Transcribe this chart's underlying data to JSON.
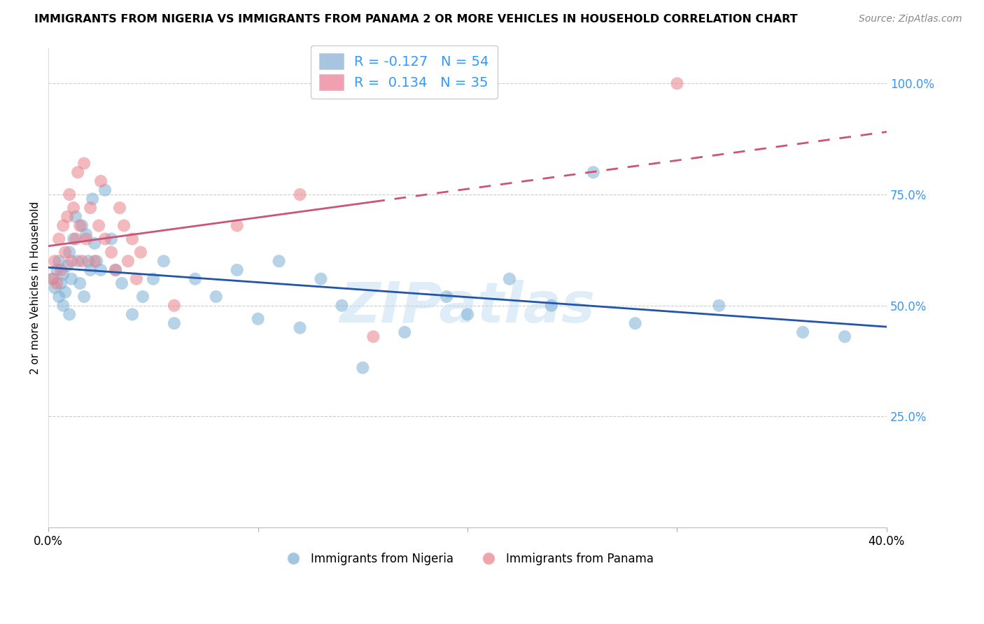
{
  "title": "IMMIGRANTS FROM NIGERIA VS IMMIGRANTS FROM PANAMA 2 OR MORE VEHICLES IN HOUSEHOLD CORRELATION CHART",
  "source": "Source: ZipAtlas.com",
  "ylabel": "2 or more Vehicles in Household",
  "ytick_labels": [
    "100.0%",
    "75.0%",
    "50.0%",
    "25.0%"
  ],
  "ytick_positions": [
    1.0,
    0.75,
    0.5,
    0.25
  ],
  "xlim": [
    0.0,
    0.4
  ],
  "ylim": [
    0.0,
    1.08
  ],
  "nigeria_color": "#7bafd4",
  "panama_color": "#e8808a",
  "nigeria_R": -0.127,
  "nigeria_N": 54,
  "panama_R": 0.134,
  "panama_N": 35,
  "nigeria_line_color": "#2255aa",
  "panama_line_color": "#cc5577",
  "watermark": "ZIPatlas",
  "watermark_color": "#b8d8f0",
  "background_color": "#ffffff",
  "grid_color": "#cccccc",
  "right_tick_color": "#3399ff",
  "legend_blue_patch": "#a8c4e0",
  "legend_pink_patch": "#f0a0b0",
  "legend_text_color": "#3399ff",
  "legend_label_color": "#111111",
  "nigeria_x": [
    0.002,
    0.003,
    0.004,
    0.005,
    0.005,
    0.006,
    0.007,
    0.007,
    0.008,
    0.009,
    0.01,
    0.01,
    0.011,
    0.012,
    0.013,
    0.014,
    0.015,
    0.016,
    0.017,
    0.018,
    0.019,
    0.02,
    0.021,
    0.022,
    0.023,
    0.025,
    0.027,
    0.03,
    0.032,
    0.035,
    0.04,
    0.045,
    0.05,
    0.055,
    0.06,
    0.07,
    0.08,
    0.09,
    0.1,
    0.11,
    0.12,
    0.13,
    0.14,
    0.15,
    0.17,
    0.19,
    0.2,
    0.22,
    0.24,
    0.26,
    0.28,
    0.32,
    0.36,
    0.38
  ],
  "nigeria_y": [
    0.56,
    0.54,
    0.58,
    0.52,
    0.6,
    0.55,
    0.5,
    0.57,
    0.53,
    0.59,
    0.62,
    0.48,
    0.56,
    0.65,
    0.7,
    0.6,
    0.55,
    0.68,
    0.52,
    0.66,
    0.6,
    0.58,
    0.74,
    0.64,
    0.6,
    0.58,
    0.76,
    0.65,
    0.58,
    0.55,
    0.48,
    0.52,
    0.56,
    0.6,
    0.46,
    0.56,
    0.52,
    0.58,
    0.47,
    0.6,
    0.45,
    0.56,
    0.5,
    0.36,
    0.44,
    0.52,
    0.48,
    0.56,
    0.5,
    0.8,
    0.46,
    0.5,
    0.44,
    0.43
  ],
  "panama_x": [
    0.002,
    0.003,
    0.004,
    0.005,
    0.006,
    0.007,
    0.008,
    0.009,
    0.01,
    0.011,
    0.012,
    0.013,
    0.014,
    0.015,
    0.016,
    0.017,
    0.018,
    0.02,
    0.022,
    0.024,
    0.025,
    0.027,
    0.03,
    0.032,
    0.034,
    0.036,
    0.038,
    0.04,
    0.042,
    0.044,
    0.06,
    0.09,
    0.12,
    0.155,
    0.3
  ],
  "panama_y": [
    0.56,
    0.6,
    0.55,
    0.65,
    0.58,
    0.68,
    0.62,
    0.7,
    0.75,
    0.6,
    0.72,
    0.65,
    0.8,
    0.68,
    0.6,
    0.82,
    0.65,
    0.72,
    0.6,
    0.68,
    0.78,
    0.65,
    0.62,
    0.58,
    0.72,
    0.68,
    0.6,
    0.65,
    0.56,
    0.62,
    0.5,
    0.68,
    0.75,
    0.43,
    1.0
  ]
}
